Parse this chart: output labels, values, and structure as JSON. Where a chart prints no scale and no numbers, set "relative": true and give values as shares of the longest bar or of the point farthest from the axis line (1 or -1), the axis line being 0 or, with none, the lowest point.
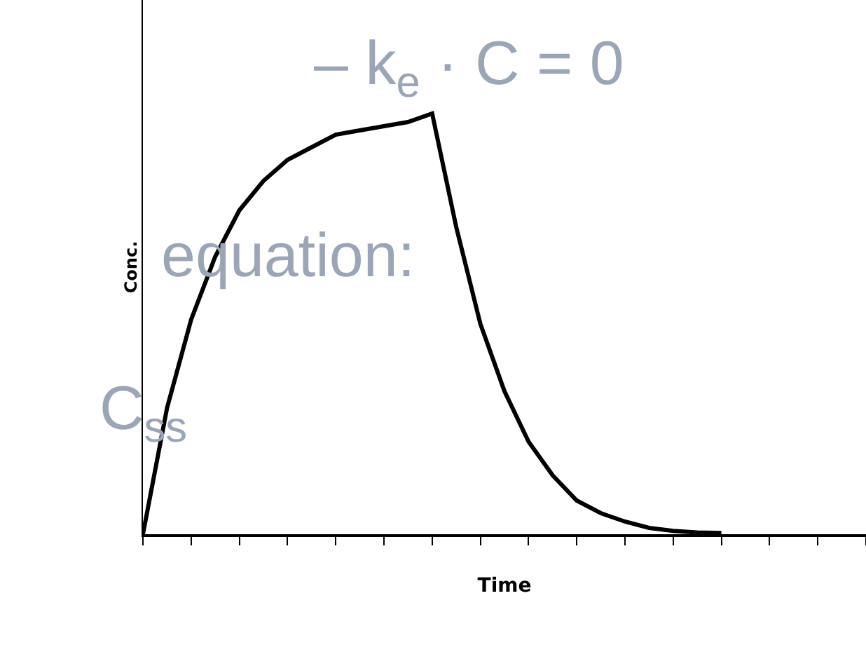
{
  "chart_data": {
    "type": "line",
    "relative": true,
    "xlabel": "Time",
    "ylabel": "Conc.",
    "categories": [
      null,
      null,
      null,
      null,
      null,
      null,
      null,
      null,
      null,
      null,
      null,
      null,
      null,
      null,
      null,
      null,
      null,
      null,
      null,
      null,
      null,
      null,
      null,
      null,
      null
    ],
    "series": [
      {
        "color": "#000000",
        "values": [
          0,
          0.3,
          0.51,
          0.66,
          0.77,
          0.84,
          0.89,
          0.92,
          0.95,
          0.96,
          0.97,
          0.98,
          1.0,
          0.73,
          0.5,
          0.34,
          0.22,
          0.14,
          0.08,
          0.05,
          0.03,
          0.015,
          0.008,
          0.004,
          0.003
        ]
      }
    ],
    "marker": "none",
    "line_style": "solid",
    "annotations": [
      "– k$_{e}$ · C = 0",
      "equation:",
      "C$_{ss}$"
    ]
  }
}
